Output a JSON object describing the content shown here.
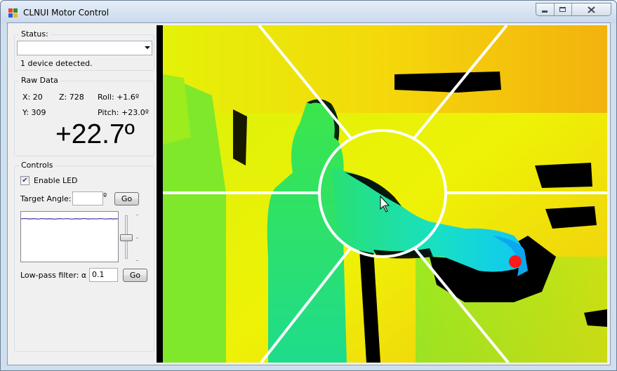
{
  "window": {
    "title": "CLNUI Motor Control"
  },
  "status": {
    "group_title": "Status:",
    "selected_device": "",
    "message": "1 device detected."
  },
  "raw_data": {
    "group_title": "Raw Data",
    "x": "X: 20",
    "z": "Z: 728",
    "roll": "Roll: +1.6º",
    "y": "Y: 309",
    "pitch": "Pitch: +23.0º",
    "angle_display": "+22.7º"
  },
  "controls": {
    "group_title": "Controls",
    "enable_led_label": "Enable LED",
    "enable_led_checked": true,
    "target_angle_label": "Target Angle:",
    "target_angle_value": "",
    "degree_symbol": "º",
    "go_label": "Go",
    "filter_label": "Low-pass filter: α =",
    "filter_value": "0.1",
    "filter_go_label": "Go"
  },
  "colors": {
    "depth_far": "#f5b10e",
    "depth_mid": "#e8f206",
    "depth_near": "#1ee65a",
    "depth_closest": "#14dcf0",
    "overlay_lines": "#ffffff",
    "marker": "#ff1a1a",
    "plot_trace": "#5a3fa8"
  },
  "icons": {
    "app": "app-icon",
    "minimize": "minimize-icon",
    "maximize": "maximize-icon",
    "close": "close-icon",
    "cursor": "mouse-cursor-icon"
  }
}
